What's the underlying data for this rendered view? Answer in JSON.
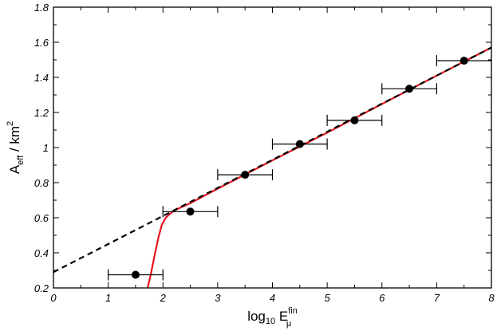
{
  "chart_data": {
    "type": "scatter",
    "xlabel": {
      "base": "log",
      "base_sub": "10",
      "main": " E",
      "sup": "fin",
      "sub": "μ"
    },
    "ylabel": {
      "main": "A",
      "sub": "eff",
      "rest": " / km",
      "sup": "2"
    },
    "xlim": [
      0,
      8
    ],
    "ylim": [
      0.2,
      1.8
    ],
    "x_ticks": [
      0,
      1,
      2,
      3,
      4,
      5,
      6,
      7,
      8
    ],
    "x_tick_labels": [
      "0",
      "1",
      "2",
      "3",
      "4",
      "5",
      "6",
      "7",
      "8"
    ],
    "y_ticks": [
      0.2,
      0.4,
      0.6,
      0.8,
      1.0,
      1.2,
      1.4,
      1.6,
      1.8
    ],
    "y_tick_labels": [
      "0.2",
      "0.4",
      "0.6",
      "0.8",
      "1",
      "1.2",
      "1.4",
      "1.6",
      "1.8"
    ],
    "grid": false,
    "series": [
      {
        "kind": "points_with_xerr",
        "color": "#000000",
        "points": [
          {
            "x": 1.5,
            "y": 0.275,
            "xerr": [
              1,
              2
            ]
          },
          {
            "x": 2.5,
            "y": 0.635,
            "xerr": [
              2,
              3
            ]
          },
          {
            "x": 3.5,
            "y": 0.845,
            "xerr": [
              3,
              4
            ]
          },
          {
            "x": 4.5,
            "y": 1.02,
            "xerr": [
              4,
              5
            ]
          },
          {
            "x": 5.5,
            "y": 1.155,
            "xerr": [
              5,
              6
            ]
          },
          {
            "x": 6.5,
            "y": 1.335,
            "xerr": [
              6,
              7
            ]
          },
          {
            "x": 7.5,
            "y": 1.495,
            "xerr": [
              7,
              8
            ]
          }
        ]
      },
      {
        "kind": "line",
        "style": "solid",
        "color": "#e8141c",
        "x": [
          1.72,
          1.78,
          1.85,
          1.92,
          1.98,
          2.05,
          2.12,
          2.2,
          2.3,
          2.5,
          3,
          4,
          5,
          6,
          7,
          8
        ],
        "y": [
          0.2,
          0.28,
          0.39,
          0.49,
          0.56,
          0.6,
          0.62,
          0.64,
          0.655,
          0.683,
          0.766,
          0.927,
          1.085,
          1.248,
          1.41,
          1.57
        ]
      },
      {
        "kind": "line",
        "style": "dashed",
        "color": "#000000",
        "x": [
          0,
          8
        ],
        "y": [
          0.29,
          1.57
        ]
      }
    ]
  }
}
